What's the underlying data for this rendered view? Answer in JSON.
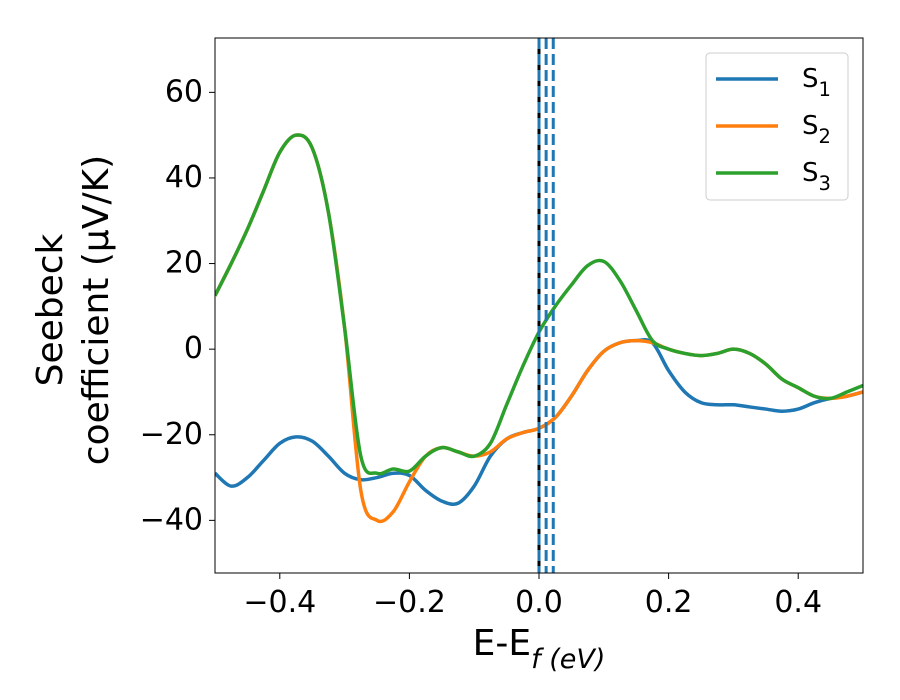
{
  "chart_data": {
    "type": "line",
    "xlabel": "E-E_f (eV)",
    "ylabel": [
      "Seebeck",
      "coefficient  (μV/K)"
    ],
    "x": [
      -0.5,
      -0.475,
      -0.45,
      -0.425,
      -0.4,
      -0.375,
      -0.35,
      -0.325,
      -0.3,
      -0.275,
      -0.25,
      -0.225,
      -0.2,
      -0.175,
      -0.15,
      -0.125,
      -0.1,
      -0.075,
      -0.05,
      -0.025,
      0,
      0.025,
      0.05,
      0.075,
      0.1,
      0.125,
      0.15,
      0.175,
      0.2,
      0.225,
      0.25,
      0.275,
      0.3,
      0.325,
      0.35,
      0.375,
      0.4,
      0.425,
      0.45,
      0.475,
      0.5
    ],
    "series": [
      {
        "name": "S_1",
        "color": "#1f77b4",
        "values": [
          -29,
          -32,
          -30,
          -26,
          -22,
          -20.5,
          -21.5,
          -25,
          -29,
          -30.5,
          -30,
          -29,
          -29.5,
          -33,
          -35.5,
          -36,
          -32,
          -25,
          -21,
          -19.5,
          -18.5,
          -16,
          -11,
          -5,
          -0.5,
          1.5,
          2,
          1.5,
          -5,
          -10,
          -12.5,
          -13,
          -13,
          -13.5,
          -14,
          -14.5,
          -14,
          -12.5,
          -11.5,
          -11,
          -10
        ]
      },
      {
        "name": "S_2",
        "color": "#ff7f0e",
        "values": [
          12.5,
          20,
          28,
          37,
          46,
          50,
          47,
          32,
          5,
          -33,
          -40,
          -38,
          -31,
          -25,
          -23,
          -24,
          -25,
          -24,
          -21,
          -19.5,
          -18.5,
          -16,
          -11,
          -5,
          -0.5,
          1.5,
          2,
          1.5,
          0,
          -1,
          -1.5,
          -1,
          0,
          -1,
          -3.5,
          -7,
          -9,
          -11,
          -11.5,
          -11,
          -10
        ]
      },
      {
        "name": "S_3",
        "color": "#2ca02c",
        "values": [
          12.5,
          20,
          28,
          37,
          46,
          50,
          47,
          32,
          5,
          -25,
          -29,
          -28,
          -28.5,
          -25,
          -23,
          -24,
          -25,
          -22,
          -13,
          -4,
          4,
          10,
          15,
          19.5,
          20.5,
          16,
          9,
          2,
          0,
          -1,
          -1.5,
          -1,
          0,
          -1,
          -3.5,
          -7,
          -9,
          -11,
          -11.5,
          -10,
          -8.5
        ]
      }
    ],
    "vlines": [
      {
        "x": 0,
        "color": "#000000",
        "style": "solid"
      },
      {
        "x": 0.0,
        "color": "#1f77b4",
        "style": "dashed"
      },
      {
        "x": 0.011,
        "color": "#1f77b4",
        "style": "dashed"
      },
      {
        "x": 0.022,
        "color": "#1f77b4",
        "style": "dashed"
      }
    ],
    "xlim": [
      -0.5,
      0.5
    ],
    "ylim": [
      -52.3,
      72.7
    ],
    "xticks": [
      {
        "value": -0.4,
        "label": "−0.4"
      },
      {
        "value": -0.2,
        "label": "−0.2"
      },
      {
        "value": 0,
        "label": "0.0"
      },
      0.2,
      0.4
    ],
    "yticks": [
      {
        "value": -40,
        "label": "−40"
      },
      {
        "value": -20,
        "label": "−20"
      },
      0,
      20,
      40,
      60
    ],
    "legend": "upper right",
    "grid": false
  }
}
